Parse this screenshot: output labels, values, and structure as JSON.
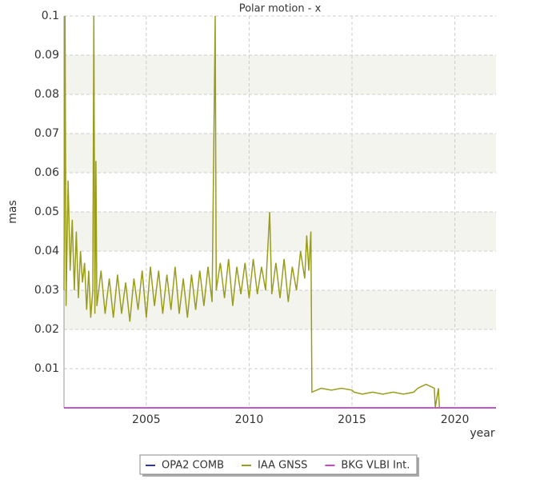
{
  "chart_data": {
    "type": "line",
    "title": "Polar motion - x",
    "x_label": "year",
    "y_label": "mas",
    "xlim": [
      2001,
      2022
    ],
    "xticks": [
      2005,
      2010,
      2015,
      2020
    ],
    "ylim": [
      0,
      0.1
    ],
    "yticks": [
      0.01,
      0.02,
      0.03,
      0.04,
      0.05,
      0.06,
      0.07,
      0.08,
      0.09,
      0.1
    ],
    "grid": true,
    "legend": "bottom",
    "series": [
      {
        "name": "OPA2 COMB",
        "color": "#3333aa",
        "x": [
          2001,
          2022
        ],
        "values": [
          0,
          0
        ]
      },
      {
        "name": "IAA GNSS",
        "color": "#9a9c1c",
        "x": [
          2001.0,
          2001.05,
          2001.1,
          2001.2,
          2001.3,
          2001.4,
          2001.5,
          2001.6,
          2001.7,
          2001.8,
          2001.9,
          2002.0,
          2002.1,
          2002.2,
          2002.3,
          2002.4,
          2002.45,
          2002.5,
          2002.55,
          2002.6,
          2002.8,
          2003.0,
          2003.2,
          2003.4,
          2003.6,
          2003.8,
          2004.0,
          2004.2,
          2004.4,
          2004.6,
          2004.8,
          2005.0,
          2005.2,
          2005.4,
          2005.6,
          2005.8,
          2006.0,
          2006.2,
          2006.4,
          2006.6,
          2006.8,
          2007.0,
          2007.2,
          2007.4,
          2007.6,
          2007.8,
          2008.0,
          2008.2,
          2008.35,
          2008.4,
          2008.6,
          2008.8,
          2009.0,
          2009.2,
          2009.4,
          2009.6,
          2009.8,
          2010.0,
          2010.2,
          2010.4,
          2010.6,
          2010.8,
          2011.0,
          2011.1,
          2011.3,
          2011.5,
          2011.7,
          2011.9,
          2012.1,
          2012.3,
          2012.5,
          2012.7,
          2012.8,
          2012.9,
          2013.0,
          2013.05,
          2013.5,
          2014.0,
          2014.5,
          2015.0,
          2015.1,
          2015.5,
          2016.0,
          2016.5,
          2017.0,
          2017.5,
          2018.0,
          2018.2,
          2018.6,
          2019.0,
          2019.05,
          2019.2,
          2019.25
        ],
        "values": [
          0.03,
          0.1,
          0.026,
          0.058,
          0.035,
          0.048,
          0.03,
          0.045,
          0.028,
          0.04,
          0.032,
          0.037,
          0.025,
          0.035,
          0.023,
          0.03,
          0.1,
          0.024,
          0.063,
          0.026,
          0.035,
          0.024,
          0.033,
          0.023,
          0.034,
          0.024,
          0.032,
          0.022,
          0.033,
          0.025,
          0.035,
          0.023,
          0.036,
          0.026,
          0.035,
          0.024,
          0.034,
          0.025,
          0.036,
          0.024,
          0.033,
          0.023,
          0.034,
          0.025,
          0.035,
          0.026,
          0.036,
          0.027,
          0.1,
          0.03,
          0.037,
          0.028,
          0.038,
          0.026,
          0.036,
          0.029,
          0.037,
          0.028,
          0.038,
          0.029,
          0.036,
          0.03,
          0.05,
          0.029,
          0.037,
          0.028,
          0.038,
          0.027,
          0.036,
          0.03,
          0.04,
          0.033,
          0.044,
          0.035,
          0.045,
          0.004,
          0.005,
          0.0045,
          0.005,
          0.0045,
          0.004,
          0.0035,
          0.004,
          0.0035,
          0.004,
          0.0035,
          0.004,
          0.005,
          0.006,
          0.005,
          0,
          0.005,
          0
        ]
      },
      {
        "name": "BKG VLBI Int.",
        "color": "#cc44cc",
        "x": [
          2001,
          2022
        ],
        "values": [
          0,
          0
        ]
      }
    ]
  }
}
